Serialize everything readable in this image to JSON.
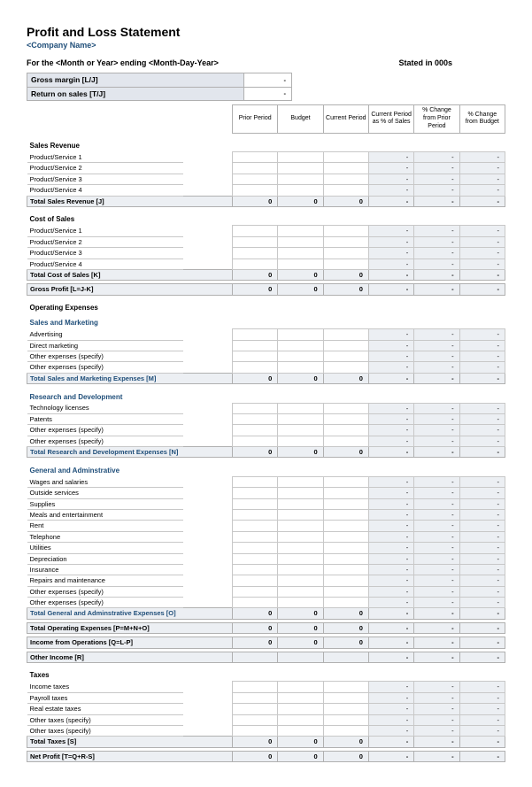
{
  "title": "Profit and Loss Statement",
  "company": "<Company Name>",
  "period_line": "For the  <Month or Year>  ending  <Month-Day-Year>",
  "stated": "Stated in 000s",
  "metrics": {
    "gross_margin_label": "Gross margin  [L/J]",
    "gross_margin_val": "-",
    "return_on_sales_label": "Return on sales  [T/J]",
    "return_on_sales_val": "-"
  },
  "columns": {
    "prior": "Prior Period",
    "budget": "Budget",
    "current": "Current Period",
    "pct_sales": "Current Period as % of Sales",
    "pct_prior": "% Change from Prior Period",
    "pct_budget": "% Change from Budget"
  },
  "colors": {
    "accent_blue": "#1f4e79",
    "shade_bg": "#e2e6ed",
    "shade_bg_light": "#eceff3",
    "border": "#b0b0b0",
    "border_light": "#c8c8c8"
  },
  "zero": "0",
  "dash": "-",
  "sections": {
    "sales_revenue": {
      "header": "Sales Revenue",
      "rows": [
        "Product/Service 1",
        "Product/Service 2",
        "Product/Service 3",
        "Product/Service 4"
      ],
      "total": "Total Sales Revenue  [J]"
    },
    "cost_of_sales": {
      "header": "Cost of Sales",
      "rows": [
        "Product/Service 1",
        "Product/Service 2",
        "Product/Service 3",
        "Product/Service 4"
      ],
      "total": "Total Cost of Sales  [K]"
    },
    "gross_profit": "Gross Profit  [L=J-K]",
    "opex_header": "Operating Expenses",
    "sales_marketing": {
      "header": "Sales and Marketing",
      "rows": [
        "Advertising",
        "Direct marketing",
        "Other expenses (specify)",
        "Other expenses (specify)"
      ],
      "total": "Total Sales and Marketing Expenses  [M]"
    },
    "rnd": {
      "header": "Research and Development",
      "rows": [
        "Technology licenses",
        "Patents",
        "Other expenses (specify)",
        "Other expenses (specify)"
      ],
      "total": "Total Research and Development Expenses  [N]"
    },
    "ga": {
      "header": "General and Adminstrative",
      "rows": [
        "Wages and salaries",
        "Outside services",
        "Supplies",
        "Meals and entertainment",
        "Rent",
        "Telephone",
        "Utilities",
        "Depreciation",
        "Insurance",
        "Repairs and maintenance",
        "Other expenses (specify)",
        "Other expenses (specify)"
      ],
      "total": "Total General and Adminstrative Expenses  [O]"
    },
    "total_opex": "Total Operating Expenses  [P=M+N+O]",
    "income_ops": "Income from Operations  [Q=L-P]",
    "other_income": "Other Income  [R]",
    "taxes": {
      "header": "Taxes",
      "rows": [
        "Income taxes",
        "Payroll taxes",
        "Real estate taxes",
        "Other taxes (specify)",
        "Other taxes (specify)"
      ],
      "total": "Total Taxes  [S]"
    },
    "net_profit": "Net Profit  [T=Q+R-S]"
  }
}
